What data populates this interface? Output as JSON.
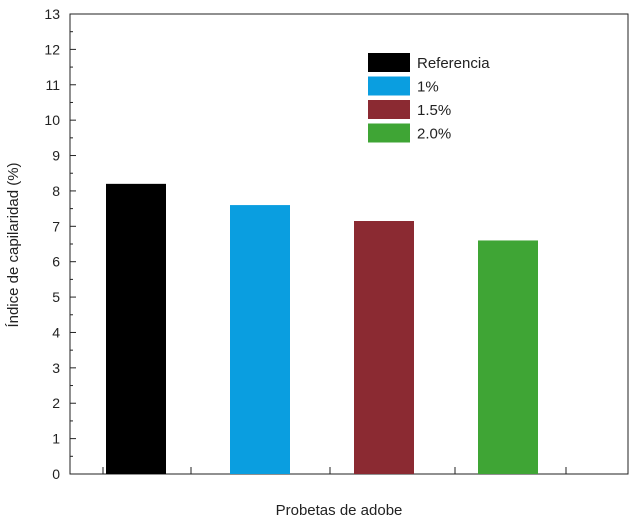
{
  "chart_data": {
    "type": "bar",
    "xlabel": "Probetas de adobe",
    "ylabel": "Índice de capilaridad (%)",
    "ylim": [
      0,
      13
    ],
    "yticks": [
      0,
      1,
      2,
      3,
      4,
      5,
      6,
      7,
      8,
      9,
      10,
      11,
      12,
      13
    ],
    "series": [
      {
        "name": "Referencia",
        "value": 8.2,
        "color": "#000000"
      },
      {
        "name": "1%",
        "value": 7.6,
        "color": "#0a9ee0"
      },
      {
        "name": "1.5%",
        "value": 7.15,
        "color": "#8b2a32"
      },
      {
        "name": "2.0%",
        "value": 6.6,
        "color": "#3fa535"
      }
    ],
    "legend_position": "top-right",
    "grid": false
  }
}
